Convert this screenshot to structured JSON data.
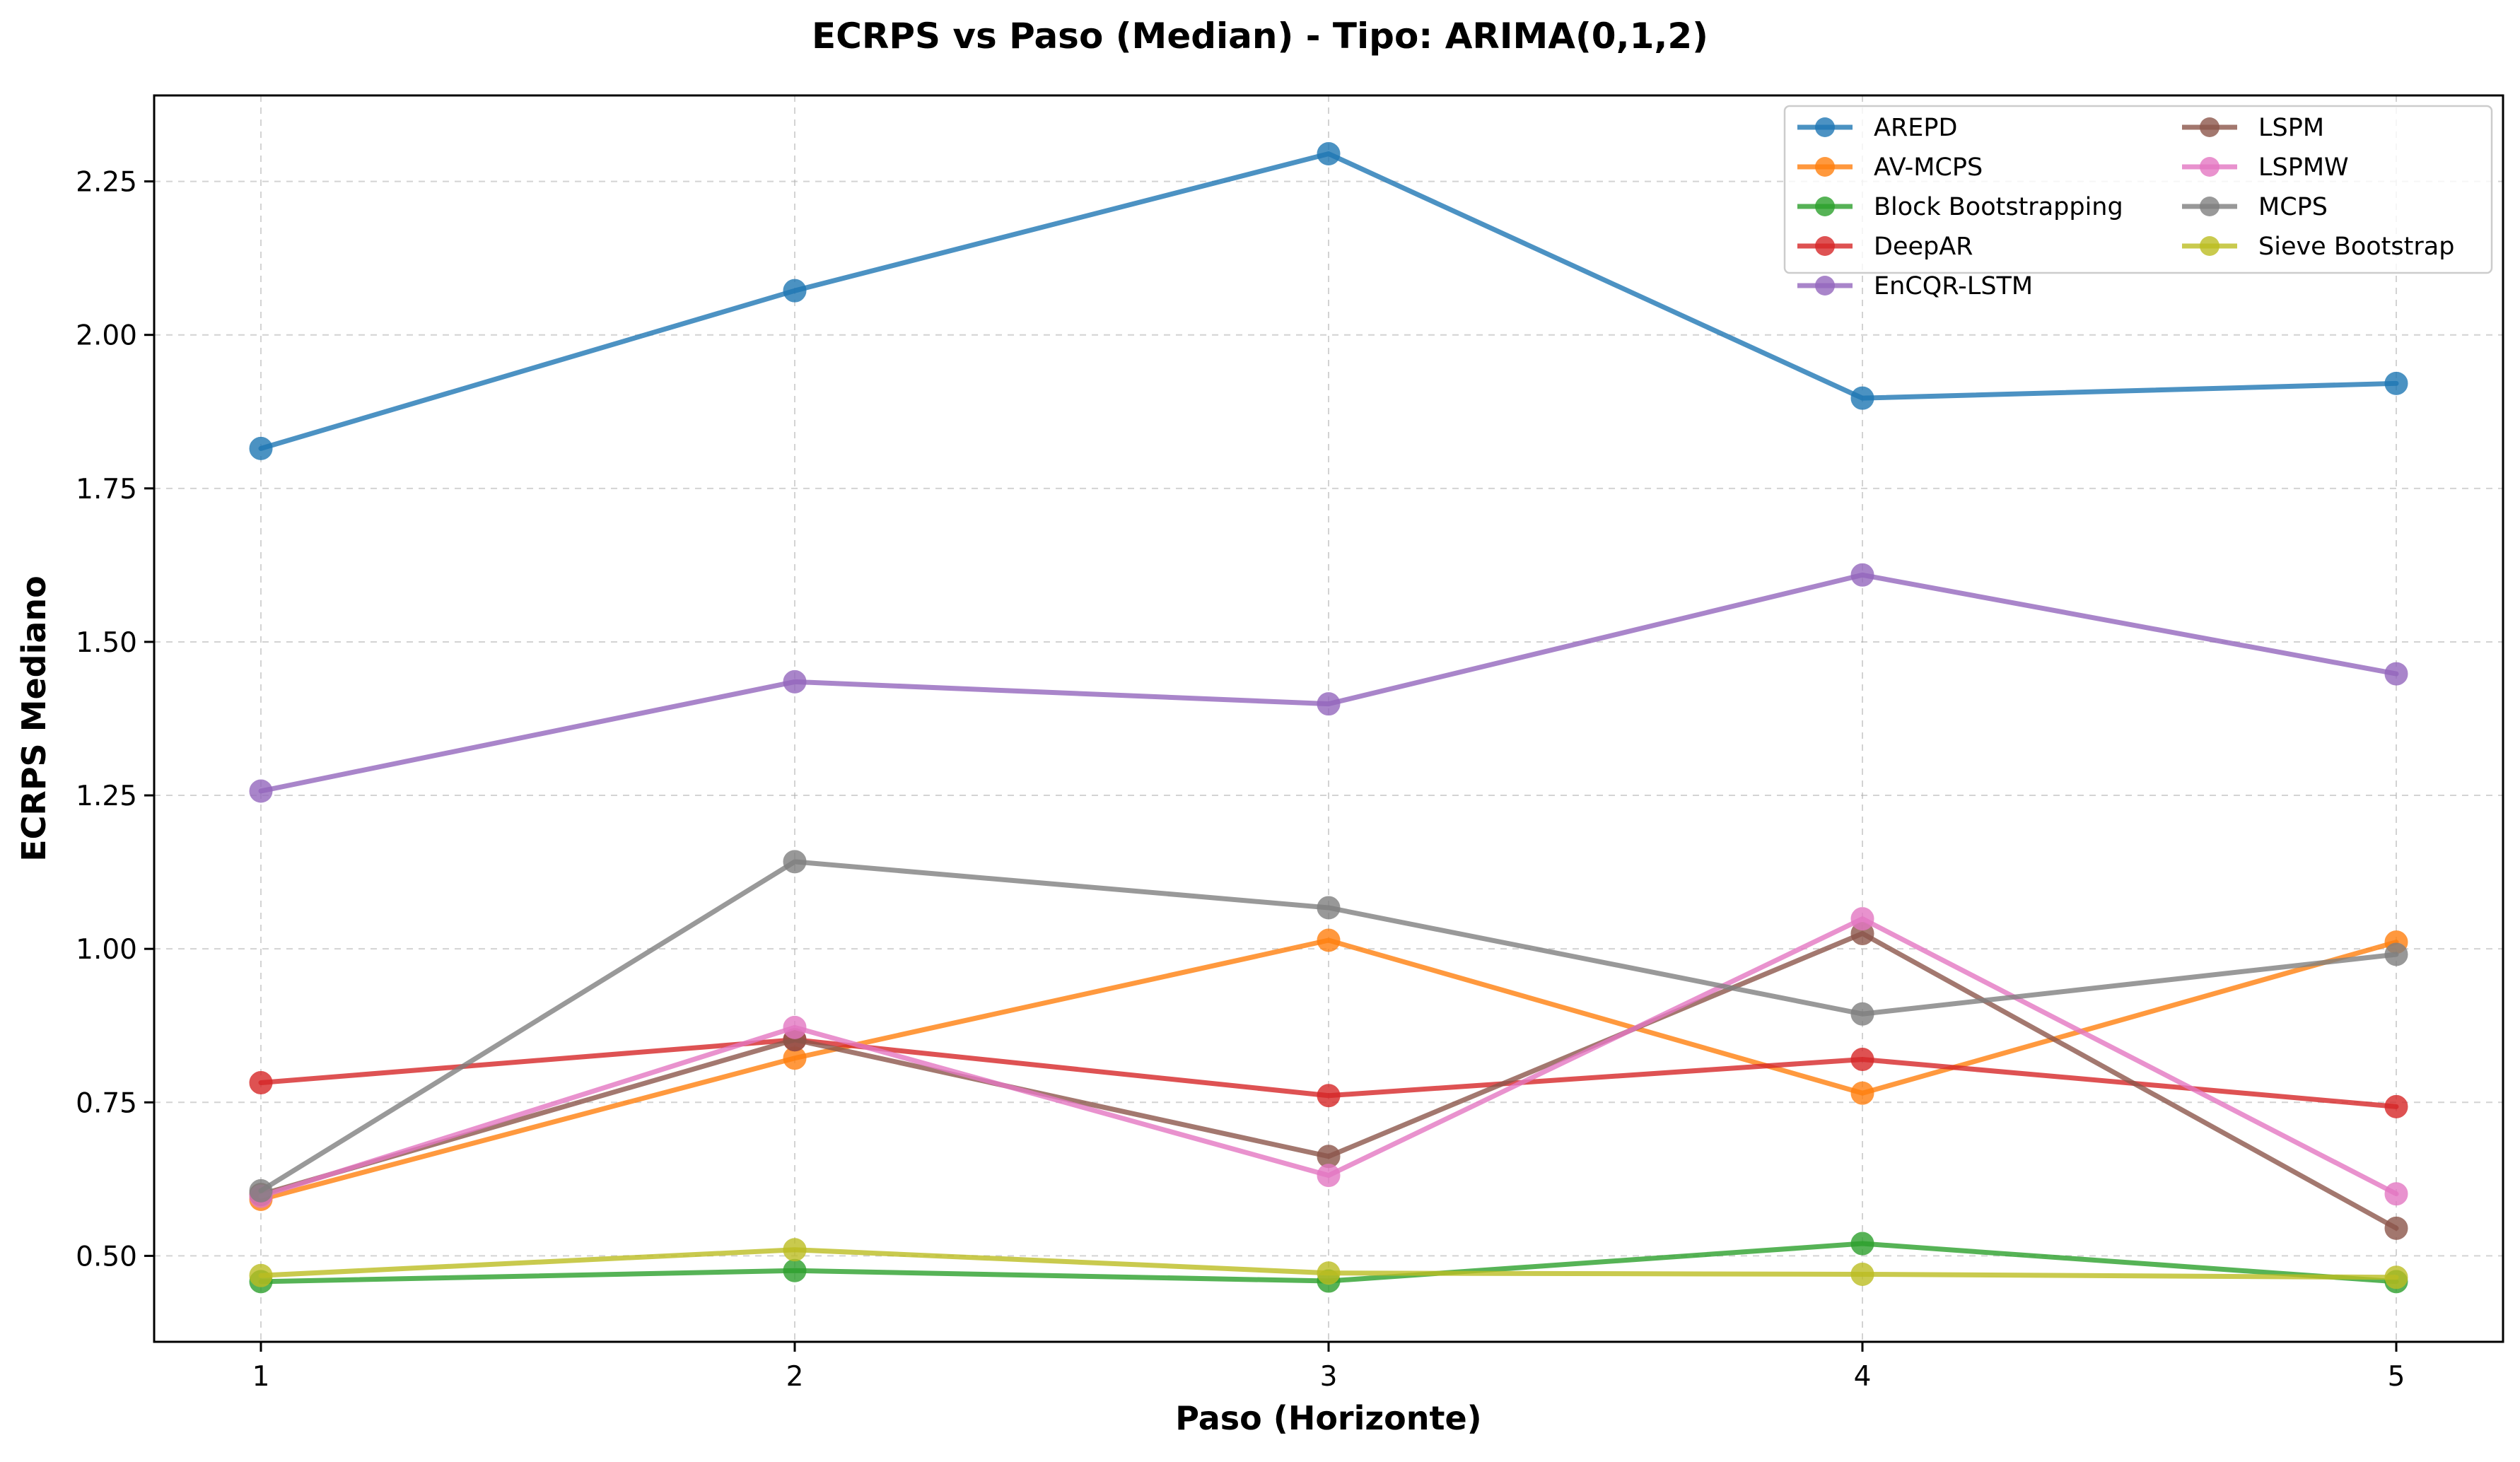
{
  "chart_data": {
    "type": "line",
    "title": "ECRPS vs Paso (Median) - Tipo: ARIMA(0,1,2)",
    "xlabel": "Paso (Horizonte)",
    "ylabel": "ECRPS Mediano",
    "x": [
      1,
      2,
      3,
      4,
      5
    ],
    "x_tick_labels": [
      "1",
      "2",
      "3",
      "4",
      "5"
    ],
    "xlim": [
      0.8,
      5.2
    ],
    "ylim": [
      0.36,
      2.39
    ],
    "y_ticks": [
      0.5,
      0.75,
      1.0,
      1.25,
      1.5,
      1.75,
      2.0,
      2.25
    ],
    "y_tick_labels": [
      "0.50",
      "0.75",
      "1.00",
      "1.25",
      "1.50",
      "1.75",
      "2.00",
      "2.25"
    ],
    "grid": true,
    "legend_position": "top-right",
    "legend_columns": 2,
    "series": [
      {
        "name": "AREPD",
        "color": "#1f77b4",
        "values": [
          1.815,
          2.072,
          2.295,
          1.897,
          1.921
        ]
      },
      {
        "name": "AV-MCPS",
        "color": "#ff7f0e",
        "values": [
          0.592,
          0.822,
          1.014,
          0.765,
          1.011
        ]
      },
      {
        "name": "Block Bootstrapping",
        "color": "#2ca02c",
        "values": [
          0.458,
          0.476,
          0.459,
          0.52,
          0.458
        ]
      },
      {
        "name": "DeepAR",
        "color": "#d62728",
        "values": [
          0.782,
          0.852,
          0.761,
          0.82,
          0.743
        ]
      },
      {
        "name": "EnCQR-LSTM",
        "color": "#9467bd",
        "values": [
          1.257,
          1.435,
          1.399,
          1.609,
          1.448
        ]
      },
      {
        "name": "LSPM",
        "color": "#8c564b",
        "values": [
          0.6,
          0.852,
          0.662,
          1.025,
          0.545
        ]
      },
      {
        "name": "LSPMW",
        "color": "#e377c2",
        "values": [
          0.597,
          0.872,
          0.631,
          1.049,
          0.601
        ]
      },
      {
        "name": "MCPS",
        "color": "#7f7f7f",
        "values": [
          0.606,
          1.142,
          1.067,
          0.894,
          0.991
        ]
      },
      {
        "name": "Sieve Bootstrap",
        "color": "#bcbd22",
        "values": [
          0.468,
          0.51,
          0.472,
          0.47,
          0.465
        ]
      }
    ]
  }
}
